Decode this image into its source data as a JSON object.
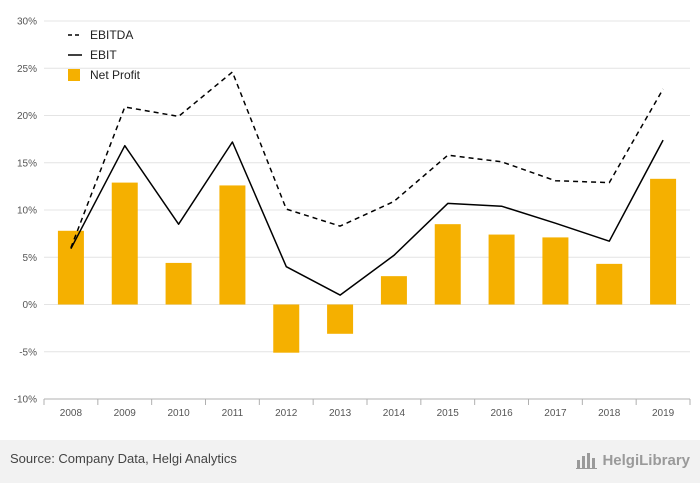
{
  "chart_data": {
    "type": "bar",
    "categories": [
      "2008",
      "2009",
      "2010",
      "2011",
      "2012",
      "2013",
      "2014",
      "2015",
      "2016",
      "2017",
      "2018",
      "2019"
    ],
    "series": [
      {
        "name": "EBITDA",
        "type": "line",
        "style": "dashed",
        "color": "#000000",
        "values": [
          6.0,
          20.9,
          19.9,
          24.6,
          10.1,
          8.3,
          10.9,
          15.8,
          15.1,
          13.1,
          12.9,
          22.8
        ]
      },
      {
        "name": "EBIT",
        "type": "line",
        "style": "solid",
        "color": "#000000",
        "values": [
          5.9,
          16.8,
          8.5,
          17.2,
          4.0,
          1.0,
          5.2,
          10.7,
          10.4,
          8.6,
          6.7,
          17.4
        ]
      },
      {
        "name": "Net Profit",
        "type": "bar",
        "color": "#f5b000",
        "values": [
          7.8,
          12.9,
          4.4,
          12.6,
          -5.1,
          -3.1,
          3.0,
          8.5,
          7.4,
          7.1,
          4.3,
          13.3
        ]
      }
    ],
    "yticks": [
      "30%",
      "25%",
      "20%",
      "15%",
      "10%",
      "5%",
      "0%",
      "-5%",
      "-10%"
    ],
    "ylim": [
      -10,
      30
    ],
    "grid": true,
    "legend_position": "top-left",
    "title": "",
    "xlabel": "",
    "ylabel": ""
  },
  "footer": {
    "source": "Source: Company Data, Helgi Analytics",
    "logo_text": "HelgiLibrary"
  },
  "logo_icon": "bar-chart-icon"
}
